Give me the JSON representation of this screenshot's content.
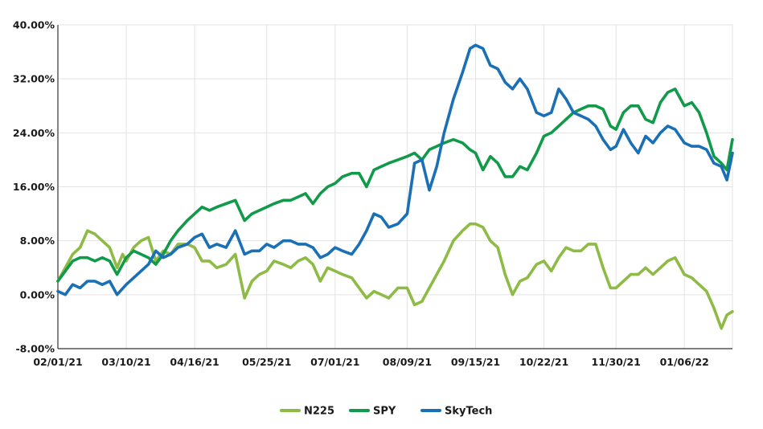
{
  "chart_data": {
    "type": "line",
    "title": "",
    "xlabel": "",
    "ylabel": "",
    "x_ticks": [
      "02/01/21",
      "03/10/21",
      "04/16/21",
      "05/25/21",
      "07/01/21",
      "08/09/21",
      "09/15/21",
      "10/22/21",
      "11/30/21",
      "01/06/22"
    ],
    "y_ticks": [
      "40.00%",
      "32.00%",
      "24.00%",
      "16.00%",
      "8.00%",
      "0.00%",
      "-8.00%"
    ],
    "ylim": [
      -8,
      40
    ],
    "xlim": [
      "02/01/21",
      "02/01/22"
    ],
    "grid": true,
    "legend_position": "bottom-center",
    "series": [
      {
        "name": "N225",
        "color": "#8dbb45",
        "points": [
          [
            "02/01/21",
            2.0
          ],
          [
            "02/05/21",
            4.0
          ],
          [
            "02/09/21",
            6.0
          ],
          [
            "02/13/21",
            7.0
          ],
          [
            "02/17/21",
            9.5
          ],
          [
            "02/21/21",
            9.0
          ],
          [
            "02/25/21",
            8.0
          ],
          [
            "03/01/21",
            7.0
          ],
          [
            "03/05/21",
            4.0
          ],
          [
            "03/08/21",
            6.0
          ],
          [
            "03/10/21",
            5.0
          ],
          [
            "03/14/21",
            7.0
          ],
          [
            "03/18/21",
            8.0
          ],
          [
            "03/22/21",
            8.5
          ],
          [
            "03/26/21",
            5.0
          ],
          [
            "03/30/21",
            6.5
          ],
          [
            "04/03/21",
            6.0
          ],
          [
            "04/07/21",
            7.5
          ],
          [
            "04/12/21",
            7.5
          ],
          [
            "04/16/21",
            7.0
          ],
          [
            "04/20/21",
            5.0
          ],
          [
            "04/24/21",
            5.0
          ],
          [
            "04/28/21",
            4.0
          ],
          [
            "05/03/21",
            4.5
          ],
          [
            "05/08/21",
            6.0
          ],
          [
            "05/13/21",
            -0.5
          ],
          [
            "05/17/21",
            2.0
          ],
          [
            "05/21/21",
            3.0
          ],
          [
            "05/25/21",
            3.5
          ],
          [
            "05/29/21",
            5.0
          ],
          [
            "06/03/21",
            4.5
          ],
          [
            "06/07/21",
            4.0
          ],
          [
            "06/11/21",
            5.0
          ],
          [
            "06/15/21",
            5.5
          ],
          [
            "06/19/21",
            4.5
          ],
          [
            "06/23/21",
            2.0
          ],
          [
            "06/27/21",
            4.0
          ],
          [
            "07/01/21",
            3.5
          ],
          [
            "07/05/21",
            3.0
          ],
          [
            "07/10/21",
            2.5
          ],
          [
            "07/14/21",
            1.0
          ],
          [
            "07/18/21",
            -0.5
          ],
          [
            "07/22/21",
            0.5
          ],
          [
            "07/26/21",
            0.0
          ],
          [
            "07/30/21",
            -0.5
          ],
          [
            "08/04/21",
            1.0
          ],
          [
            "08/09/21",
            1.0
          ],
          [
            "08/13/21",
            -1.5
          ],
          [
            "08/17/21",
            -1.0
          ],
          [
            "08/21/21",
            1.0
          ],
          [
            "08/25/21",
            3.0
          ],
          [
            "08/29/21",
            5.0
          ],
          [
            "09/03/21",
            8.0
          ],
          [
            "09/08/21",
            9.5
          ],
          [
            "09/12/21",
            10.5
          ],
          [
            "09/15/21",
            10.5
          ],
          [
            "09/19/21",
            10.0
          ],
          [
            "09/23/21",
            8.0
          ],
          [
            "09/27/21",
            7.0
          ],
          [
            "10/01/21",
            3.0
          ],
          [
            "10/05/21",
            0.0
          ],
          [
            "10/09/21",
            2.0
          ],
          [
            "10/13/21",
            2.5
          ],
          [
            "10/18/21",
            4.5
          ],
          [
            "10/22/21",
            5.0
          ],
          [
            "10/26/21",
            3.5
          ],
          [
            "10/30/21",
            5.5
          ],
          [
            "11/03/21",
            7.0
          ],
          [
            "11/07/21",
            6.5
          ],
          [
            "11/11/21",
            6.5
          ],
          [
            "11/15/21",
            7.5
          ],
          [
            "11/19/21",
            7.5
          ],
          [
            "11/23/21",
            4.0
          ],
          [
            "11/27/21",
            1.0
          ],
          [
            "11/30/21",
            1.0
          ],
          [
            "12/04/21",
            2.0
          ],
          [
            "12/08/21",
            3.0
          ],
          [
            "12/12/21",
            3.0
          ],
          [
            "12/16/21",
            4.0
          ],
          [
            "12/20/21",
            3.0
          ],
          [
            "12/24/21",
            4.0
          ],
          [
            "12/28/21",
            5.0
          ],
          [
            "01/01/22",
            5.5
          ],
          [
            "01/06/22",
            3.0
          ],
          [
            "01/10/22",
            2.5
          ],
          [
            "01/14/22",
            1.5
          ],
          [
            "01/18/22",
            0.5
          ],
          [
            "01/22/22",
            -2.0
          ],
          [
            "01/26/22",
            -5.0
          ],
          [
            "01/29/22",
            -3.0
          ],
          [
            "02/01/22",
            -2.5
          ]
        ]
      },
      {
        "name": "SPY",
        "color": "#119a49",
        "points": [
          [
            "02/01/21",
            2.0
          ],
          [
            "02/05/21",
            3.5
          ],
          [
            "02/09/21",
            5.0
          ],
          [
            "02/13/21",
            5.5
          ],
          [
            "02/17/21",
            5.5
          ],
          [
            "02/21/21",
            5.0
          ],
          [
            "02/25/21",
            5.5
          ],
          [
            "03/01/21",
            5.0
          ],
          [
            "03/05/21",
            3.0
          ],
          [
            "03/10/21",
            5.5
          ],
          [
            "03/14/21",
            6.5
          ],
          [
            "03/18/21",
            6.0
          ],
          [
            "03/22/21",
            5.5
          ],
          [
            "03/26/21",
            4.5
          ],
          [
            "03/30/21",
            6.0
          ],
          [
            "04/03/21",
            8.0
          ],
          [
            "04/07/21",
            9.5
          ],
          [
            "04/12/21",
            11.0
          ],
          [
            "04/16/21",
            12.0
          ],
          [
            "04/20/21",
            13.0
          ],
          [
            "04/24/21",
            12.5
          ],
          [
            "04/28/21",
            13.0
          ],
          [
            "05/03/21",
            13.5
          ],
          [
            "05/08/21",
            14.0
          ],
          [
            "05/13/21",
            11.0
          ],
          [
            "05/17/21",
            12.0
          ],
          [
            "05/21/21",
            12.5
          ],
          [
            "05/25/21",
            13.0
          ],
          [
            "05/29/21",
            13.5
          ],
          [
            "06/03/21",
            14.0
          ],
          [
            "06/07/21",
            14.0
          ],
          [
            "06/11/21",
            14.5
          ],
          [
            "06/15/21",
            15.0
          ],
          [
            "06/19/21",
            13.5
          ],
          [
            "06/23/21",
            15.0
          ],
          [
            "06/27/21",
            16.0
          ],
          [
            "07/01/21",
            16.5
          ],
          [
            "07/05/21",
            17.5
          ],
          [
            "07/10/21",
            18.0
          ],
          [
            "07/14/21",
            18.0
          ],
          [
            "07/18/21",
            16.0
          ],
          [
            "07/22/21",
            18.5
          ],
          [
            "07/26/21",
            19.0
          ],
          [
            "07/30/21",
            19.5
          ],
          [
            "08/04/21",
            20.0
          ],
          [
            "08/09/21",
            20.5
          ],
          [
            "08/13/21",
            21.0
          ],
          [
            "08/17/21",
            20.0
          ],
          [
            "08/21/21",
            21.5
          ],
          [
            "08/25/21",
            22.0
          ],
          [
            "08/29/21",
            22.5
          ],
          [
            "09/03/21",
            23.0
          ],
          [
            "09/08/21",
            22.5
          ],
          [
            "09/12/21",
            21.5
          ],
          [
            "09/15/21",
            21.0
          ],
          [
            "09/19/21",
            18.5
          ],
          [
            "09/23/21",
            20.5
          ],
          [
            "09/27/21",
            19.5
          ],
          [
            "10/01/21",
            17.5
          ],
          [
            "10/05/21",
            17.5
          ],
          [
            "10/09/21",
            19.0
          ],
          [
            "10/13/21",
            18.5
          ],
          [
            "10/18/21",
            21.0
          ],
          [
            "10/22/21",
            23.5
          ],
          [
            "10/26/21",
            24.0
          ],
          [
            "10/30/21",
            25.0
          ],
          [
            "11/03/21",
            26.0
          ],
          [
            "11/07/21",
            27.0
          ],
          [
            "11/11/21",
            27.5
          ],
          [
            "11/15/21",
            28.0
          ],
          [
            "11/19/21",
            28.0
          ],
          [
            "11/23/21",
            27.5
          ],
          [
            "11/27/21",
            25.0
          ],
          [
            "11/30/21",
            24.5
          ],
          [
            "12/04/21",
            27.0
          ],
          [
            "12/08/21",
            28.0
          ],
          [
            "12/12/21",
            28.0
          ],
          [
            "12/16/21",
            26.0
          ],
          [
            "12/20/21",
            25.5
          ],
          [
            "12/24/21",
            28.5
          ],
          [
            "12/28/21",
            30.0
          ],
          [
            "01/01/22",
            30.5
          ],
          [
            "01/06/22",
            28.0
          ],
          [
            "01/10/22",
            28.5
          ],
          [
            "01/14/22",
            27.0
          ],
          [
            "01/18/22",
            24.0
          ],
          [
            "01/22/22",
            20.5
          ],
          [
            "01/26/22",
            19.5
          ],
          [
            "01/29/22",
            18.5
          ],
          [
            "02/01/22",
            23.0
          ]
        ]
      },
      {
        "name": "SkyTech",
        "color": "#1a6fb5",
        "points": [
          [
            "02/01/21",
            0.5
          ],
          [
            "02/05/21",
            0.0
          ],
          [
            "02/09/21",
            1.5
          ],
          [
            "02/13/21",
            1.0
          ],
          [
            "02/17/21",
            2.0
          ],
          [
            "02/21/21",
            2.0
          ],
          [
            "02/25/21",
            1.5
          ],
          [
            "03/01/21",
            2.0
          ],
          [
            "03/05/21",
            0.0
          ],
          [
            "03/10/21",
            1.5
          ],
          [
            "03/14/21",
            2.5
          ],
          [
            "03/18/21",
            3.5
          ],
          [
            "03/22/21",
            4.5
          ],
          [
            "03/26/21",
            6.5
          ],
          [
            "03/30/21",
            5.5
          ],
          [
            "04/03/21",
            6.0
          ],
          [
            "04/07/21",
            7.0
          ],
          [
            "04/12/21",
            7.5
          ],
          [
            "04/16/21",
            8.5
          ],
          [
            "04/20/21",
            9.0
          ],
          [
            "04/24/21",
            7.0
          ],
          [
            "04/28/21",
            7.5
          ],
          [
            "05/03/21",
            7.0
          ],
          [
            "05/08/21",
            9.5
          ],
          [
            "05/13/21",
            6.0
          ],
          [
            "05/17/21",
            6.5
          ],
          [
            "05/21/21",
            6.5
          ],
          [
            "05/25/21",
            7.5
          ],
          [
            "05/29/21",
            7.0
          ],
          [
            "06/03/21",
            8.0
          ],
          [
            "06/07/21",
            8.0
          ],
          [
            "06/11/21",
            7.5
          ],
          [
            "06/15/21",
            7.5
          ],
          [
            "06/19/21",
            7.0
          ],
          [
            "06/23/21",
            5.5
          ],
          [
            "06/27/21",
            6.0
          ],
          [
            "07/01/21",
            7.0
          ],
          [
            "07/05/21",
            6.5
          ],
          [
            "07/10/21",
            6.0
          ],
          [
            "07/14/21",
            7.5
          ],
          [
            "07/18/21",
            9.5
          ],
          [
            "07/22/21",
            12.0
          ],
          [
            "07/26/21",
            11.5
          ],
          [
            "07/30/21",
            10.0
          ],
          [
            "08/04/21",
            10.5
          ],
          [
            "08/09/21",
            12.0
          ],
          [
            "08/13/21",
            19.5
          ],
          [
            "08/17/21",
            20.0
          ],
          [
            "08/21/21",
            15.5
          ],
          [
            "08/25/21",
            19.0
          ],
          [
            "08/29/21",
            24.0
          ],
          [
            "09/03/21",
            29.0
          ],
          [
            "09/08/21",
            33.0
          ],
          [
            "09/12/21",
            36.5
          ],
          [
            "09/15/21",
            37.0
          ],
          [
            "09/19/21",
            36.5
          ],
          [
            "09/23/21",
            34.0
          ],
          [
            "09/27/21",
            33.5
          ],
          [
            "10/01/21",
            31.5
          ],
          [
            "10/05/21",
            30.5
          ],
          [
            "10/09/21",
            32.0
          ],
          [
            "10/13/21",
            30.5
          ],
          [
            "10/18/21",
            27.0
          ],
          [
            "10/22/21",
            26.5
          ],
          [
            "10/26/21",
            27.0
          ],
          [
            "10/30/21",
            30.5
          ],
          [
            "11/03/21",
            29.0
          ],
          [
            "11/07/21",
            27.0
          ],
          [
            "11/11/21",
            26.5
          ],
          [
            "11/15/21",
            26.0
          ],
          [
            "11/19/21",
            25.0
          ],
          [
            "11/23/21",
            23.0
          ],
          [
            "11/27/21",
            21.5
          ],
          [
            "11/30/21",
            22.0
          ],
          [
            "12/04/21",
            24.5
          ],
          [
            "12/08/21",
            22.5
          ],
          [
            "12/12/21",
            21.0
          ],
          [
            "12/16/21",
            23.5
          ],
          [
            "12/20/21",
            22.5
          ],
          [
            "12/24/21",
            24.0
          ],
          [
            "12/28/21",
            25.0
          ],
          [
            "01/01/22",
            24.5
          ],
          [
            "01/06/22",
            22.5
          ],
          [
            "01/10/22",
            22.0
          ],
          [
            "01/14/22",
            22.0
          ],
          [
            "01/18/22",
            21.5
          ],
          [
            "01/22/22",
            19.5
          ],
          [
            "01/26/22",
            19.0
          ],
          [
            "01/29/22",
            17.0
          ],
          [
            "02/01/22",
            21.0
          ]
        ]
      }
    ]
  }
}
